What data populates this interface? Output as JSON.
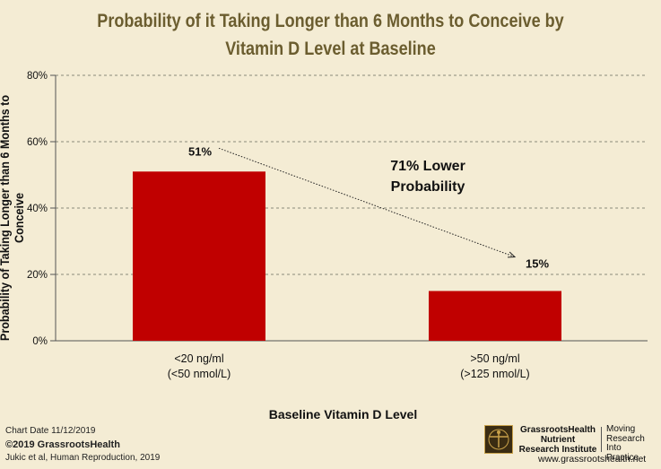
{
  "chart_data": {
    "type": "bar",
    "title": [
      "Probability of it Taking Longer than 6 Months to Conceive by",
      "Vitamin D Level at Baseline"
    ],
    "ylabel": "Probability of Taking Longer than 6 Months to Conceive",
    "xlabel": "Baseline Vitamin D Level",
    "ylim": [
      0,
      80
    ],
    "yticks": [
      "0%",
      "20%",
      "40%",
      "60%",
      "80%"
    ],
    "ytick_values": [
      0,
      20,
      40,
      60,
      80
    ],
    "categories": [
      [
        "<20 ng/ml",
        "(<50 nmol/L)"
      ],
      [
        ">50 ng/ml",
        "(>125 nmol/L)"
      ]
    ],
    "values": [
      51,
      15
    ],
    "data_labels": [
      "51%",
      "15%"
    ],
    "bar_color": "#c00000",
    "annotation": [
      "71% Lower",
      "Probability"
    ]
  },
  "footer": {
    "chart_date": "Chart Date  11/12/2019",
    "copyright": "©2019 GrassrootsHealth",
    "citation": "Jukic et al, Human Reproduction, 2019"
  },
  "logo": {
    "name_lines": [
      "GrassrootsHealth",
      "Nutrient",
      "Research Institute"
    ],
    "tagline_lines": [
      "Moving",
      "Research",
      "Into Practice"
    ],
    "url": "www.grassrootshealth.net"
  }
}
